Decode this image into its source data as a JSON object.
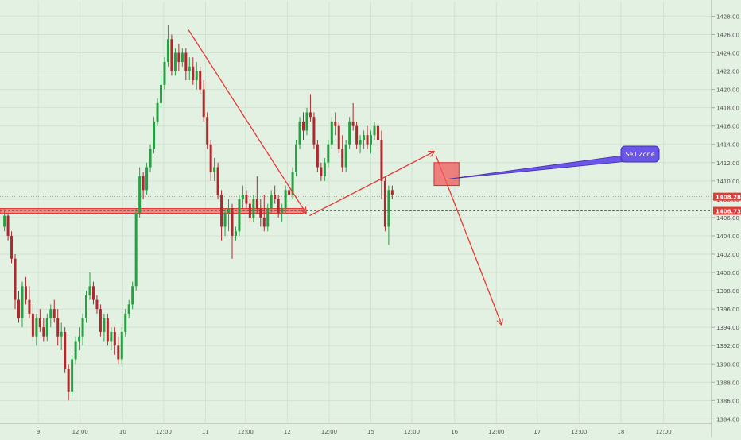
{
  "chart_data": {
    "type": "candlestick",
    "title": "",
    "xlabel": "",
    "ylabel": "",
    "ylim": [
      1383.6,
      1429.6
    ],
    "xlim": [
      0,
      80
    ],
    "grid": true,
    "y_ticks": [
      1384,
      1386,
      1388,
      1390,
      1392,
      1394,
      1396,
      1398,
      1400,
      1402,
      1404,
      1406,
      1408,
      1410,
      1412,
      1414,
      1416,
      1418,
      1420,
      1422,
      1424,
      1426,
      1428
    ],
    "x_ticks": [
      {
        "x": 4.3,
        "label": "9"
      },
      {
        "x": 9,
        "label": "12:00"
      },
      {
        "x": 13.8,
        "label": "10"
      },
      {
        "x": 18.4,
        "label": "12:00"
      },
      {
        "x": 23.1,
        "label": "11"
      },
      {
        "x": 27.6,
        "label": "12:00"
      },
      {
        "x": 32.3,
        "label": "12"
      },
      {
        "x": 37,
        "label": "12:00"
      },
      {
        "x": 41.7,
        "label": "15"
      },
      {
        "x": 46.3,
        "label": "12:00"
      },
      {
        "x": 51.1,
        "label": "16"
      },
      {
        "x": 55.8,
        "label": "12:00"
      },
      {
        "x": 60.4,
        "label": "17"
      },
      {
        "x": 65.1,
        "label": "12:00"
      },
      {
        "x": 69.8,
        "label": "18"
      },
      {
        "x": 74.6,
        "label": "12:00"
      }
    ],
    "price_labels": [
      {
        "value": 1408.28,
        "label": "1408.28"
      },
      {
        "value": 1406.73,
        "label": "1406.73"
      }
    ],
    "candles": [
      {
        "x": 0.5,
        "o": 1405.0,
        "h": 1407.0,
        "l": 1404.5,
        "c": 1406.2
      },
      {
        "x": 0.9,
        "o": 1406.2,
        "h": 1406.5,
        "l": 1403.5,
        "c": 1404.0
      },
      {
        "x": 1.3,
        "o": 1404.0,
        "h": 1404.5,
        "l": 1401.0,
        "c": 1401.5
      },
      {
        "x": 1.7,
        "o": 1401.5,
        "h": 1402.0,
        "l": 1396.0,
        "c": 1397.0
      },
      {
        "x": 2.1,
        "o": 1397.0,
        "h": 1398.0,
        "l": 1394.5,
        "c": 1395.0
      },
      {
        "x": 2.5,
        "o": 1395.0,
        "h": 1399.0,
        "l": 1394.0,
        "c": 1398.5
      },
      {
        "x": 2.9,
        "o": 1398.5,
        "h": 1399.5,
        "l": 1396.5,
        "c": 1397.0
      },
      {
        "x": 3.3,
        "o": 1397.0,
        "h": 1398.5,
        "l": 1395.0,
        "c": 1395.5
      },
      {
        "x": 3.7,
        "o": 1395.5,
        "h": 1396.5,
        "l": 1392.5,
        "c": 1393.0
      },
      {
        "x": 4.1,
        "o": 1393.0,
        "h": 1395.5,
        "l": 1392.0,
        "c": 1395.0
      },
      {
        "x": 4.5,
        "o": 1395.0,
        "h": 1396.0,
        "l": 1393.5,
        "c": 1394.0
      },
      {
        "x": 4.9,
        "o": 1394.0,
        "h": 1395.0,
        "l": 1392.5,
        "c": 1393.0
      },
      {
        "x": 5.3,
        "o": 1393.0,
        "h": 1395.5,
        "l": 1392.5,
        "c": 1395.0
      },
      {
        "x": 5.7,
        "o": 1395.0,
        "h": 1396.5,
        "l": 1394.0,
        "c": 1396.0
      },
      {
        "x": 6.1,
        "o": 1396.0,
        "h": 1397.0,
        "l": 1394.5,
        "c": 1395.0
      },
      {
        "x": 6.5,
        "o": 1395.0,
        "h": 1396.0,
        "l": 1392.0,
        "c": 1393.0
      },
      {
        "x": 6.9,
        "o": 1393.0,
        "h": 1394.5,
        "l": 1391.5,
        "c": 1393.5
      },
      {
        "x": 7.3,
        "o": 1393.5,
        "h": 1394.0,
        "l": 1389.0,
        "c": 1389.5
      },
      {
        "x": 7.7,
        "o": 1389.5,
        "h": 1390.0,
        "l": 1386.0,
        "c": 1387.0
      },
      {
        "x": 8.1,
        "o": 1387.0,
        "h": 1391.0,
        "l": 1386.5,
        "c": 1390.5
      },
      {
        "x": 8.5,
        "o": 1390.5,
        "h": 1393.0,
        "l": 1390.0,
        "c": 1392.5
      },
      {
        "x": 8.9,
        "o": 1392.5,
        "h": 1394.0,
        "l": 1391.5,
        "c": 1393.0
      },
      {
        "x": 9.3,
        "o": 1393.0,
        "h": 1395.5,
        "l": 1392.0,
        "c": 1395.0
      },
      {
        "x": 9.7,
        "o": 1395.0,
        "h": 1398.0,
        "l": 1394.5,
        "c": 1397.5
      },
      {
        "x": 10.1,
        "o": 1397.5,
        "h": 1400.0,
        "l": 1397.0,
        "c": 1398.5
      },
      {
        "x": 10.5,
        "o": 1398.5,
        "h": 1399.0,
        "l": 1396.5,
        "c": 1397.0
      },
      {
        "x": 10.9,
        "o": 1397.0,
        "h": 1397.5,
        "l": 1395.5,
        "c": 1396.0
      },
      {
        "x": 11.3,
        "o": 1396.0,
        "h": 1396.5,
        "l": 1393.0,
        "c": 1393.5
      },
      {
        "x": 11.7,
        "o": 1393.5,
        "h": 1395.5,
        "l": 1392.5,
        "c": 1395.0
      },
      {
        "x": 12.1,
        "o": 1395.0,
        "h": 1395.5,
        "l": 1392.0,
        "c": 1392.5
      },
      {
        "x": 12.5,
        "o": 1392.5,
        "h": 1394.0,
        "l": 1391.5,
        "c": 1393.5
      },
      {
        "x": 12.9,
        "o": 1393.5,
        "h": 1394.0,
        "l": 1391.0,
        "c": 1392.0
      },
      {
        "x": 13.3,
        "o": 1392.0,
        "h": 1393.0,
        "l": 1390.0,
        "c": 1390.5
      },
      {
        "x": 13.7,
        "o": 1390.5,
        "h": 1394.0,
        "l": 1390.0,
        "c": 1393.5
      },
      {
        "x": 14.1,
        "o": 1393.5,
        "h": 1396.0,
        "l": 1393.0,
        "c": 1395.5
      },
      {
        "x": 14.5,
        "o": 1395.5,
        "h": 1397.0,
        "l": 1395.0,
        "c": 1396.5
      },
      {
        "x": 14.9,
        "o": 1396.5,
        "h": 1399.0,
        "l": 1396.0,
        "c": 1398.5
      },
      {
        "x": 15.3,
        "o": 1398.5,
        "h": 1407.0,
        "l": 1398.0,
        "c": 1406.5
      },
      {
        "x": 15.7,
        "o": 1406.5,
        "h": 1411.5,
        "l": 1406.0,
        "c": 1410.5
      },
      {
        "x": 16.1,
        "o": 1410.5,
        "h": 1411.0,
        "l": 1408.0,
        "c": 1409.0
      },
      {
        "x": 16.5,
        "o": 1409.0,
        "h": 1412.0,
        "l": 1408.5,
        "c": 1411.5
      },
      {
        "x": 16.9,
        "o": 1411.5,
        "h": 1414.0,
        "l": 1411.0,
        "c": 1413.5
      },
      {
        "x": 17.3,
        "o": 1413.5,
        "h": 1417.0,
        "l": 1413.0,
        "c": 1416.5
      },
      {
        "x": 17.7,
        "o": 1416.5,
        "h": 1419.0,
        "l": 1416.0,
        "c": 1418.5
      },
      {
        "x": 18.1,
        "o": 1418.5,
        "h": 1421.5,
        "l": 1418.0,
        "c": 1420.5
      },
      {
        "x": 18.5,
        "o": 1420.5,
        "h": 1423.5,
        "l": 1420.0,
        "c": 1423.0
      },
      {
        "x": 18.9,
        "o": 1423.0,
        "h": 1427.0,
        "l": 1422.5,
        "c": 1425.5
      },
      {
        "x": 19.3,
        "o": 1425.5,
        "h": 1426.0,
        "l": 1421.5,
        "c": 1422.0
      },
      {
        "x": 19.7,
        "o": 1422.0,
        "h": 1424.5,
        "l": 1421.5,
        "c": 1424.0
      },
      {
        "x": 20.1,
        "o": 1424.0,
        "h": 1425.0,
        "l": 1422.0,
        "c": 1423.0
      },
      {
        "x": 20.5,
        "o": 1423.0,
        "h": 1424.5,
        "l": 1422.5,
        "c": 1424.0
      },
      {
        "x": 20.9,
        "o": 1424.0,
        "h": 1424.5,
        "l": 1421.0,
        "c": 1422.0
      },
      {
        "x": 21.3,
        "o": 1422.0,
        "h": 1423.5,
        "l": 1421.0,
        "c": 1422.5
      },
      {
        "x": 21.7,
        "o": 1422.5,
        "h": 1423.5,
        "l": 1420.5,
        "c": 1421.0
      },
      {
        "x": 22.1,
        "o": 1421.0,
        "h": 1423.0,
        "l": 1420.0,
        "c": 1422.0
      },
      {
        "x": 22.5,
        "o": 1422.0,
        "h": 1422.5,
        "l": 1419.5,
        "c": 1420.0
      },
      {
        "x": 22.9,
        "o": 1420.0,
        "h": 1421.0,
        "l": 1416.5,
        "c": 1417.0
      },
      {
        "x": 23.3,
        "o": 1417.0,
        "h": 1417.5,
        "l": 1413.5,
        "c": 1414.0
      },
      {
        "x": 23.7,
        "o": 1414.0,
        "h": 1414.5,
        "l": 1410.0,
        "c": 1411.0
      },
      {
        "x": 24.1,
        "o": 1411.0,
        "h": 1412.5,
        "l": 1410.0,
        "c": 1411.5
      },
      {
        "x": 24.5,
        "o": 1411.5,
        "h": 1412.0,
        "l": 1408.0,
        "c": 1408.5
      },
      {
        "x": 24.9,
        "o": 1408.5,
        "h": 1409.0,
        "l": 1403.5,
        "c": 1405.0
      },
      {
        "x": 25.3,
        "o": 1405.0,
        "h": 1407.0,
        "l": 1404.0,
        "c": 1406.5
      },
      {
        "x": 25.7,
        "o": 1406.5,
        "h": 1408.0,
        "l": 1404.5,
        "c": 1407.0
      },
      {
        "x": 26.1,
        "o": 1407.0,
        "h": 1407.5,
        "l": 1401.5,
        "c": 1404.0
      },
      {
        "x": 26.5,
        "o": 1404.0,
        "h": 1405.0,
        "l": 1403.5,
        "c": 1404.5
      },
      {
        "x": 26.9,
        "o": 1404.5,
        "h": 1408.5,
        "l": 1404.0,
        "c": 1408.0
      },
      {
        "x": 27.3,
        "o": 1408.0,
        "h": 1409.5,
        "l": 1407.0,
        "c": 1408.5
      },
      {
        "x": 27.7,
        "o": 1408.5,
        "h": 1409.0,
        "l": 1407.0,
        "c": 1407.5
      },
      {
        "x": 28.1,
        "o": 1407.5,
        "h": 1408.0,
        "l": 1405.5,
        "c": 1406.0
      },
      {
        "x": 28.5,
        "o": 1406.0,
        "h": 1408.5,
        "l": 1405.5,
        "c": 1408.0
      },
      {
        "x": 28.9,
        "o": 1408.0,
        "h": 1410.5,
        "l": 1406.5,
        "c": 1407.0
      },
      {
        "x": 29.3,
        "o": 1407.0,
        "h": 1408.0,
        "l": 1405.0,
        "c": 1406.0
      },
      {
        "x": 29.7,
        "o": 1406.0,
        "h": 1408.5,
        "l": 1404.5,
        "c": 1405.0
      },
      {
        "x": 30.1,
        "o": 1405.0,
        "h": 1407.5,
        "l": 1404.5,
        "c": 1407.0
      },
      {
        "x": 30.5,
        "o": 1407.0,
        "h": 1409.0,
        "l": 1406.5,
        "c": 1408.5
      },
      {
        "x": 30.9,
        "o": 1408.5,
        "h": 1409.5,
        "l": 1407.5,
        "c": 1408.0
      },
      {
        "x": 31.3,
        "o": 1408.0,
        "h": 1408.5,
        "l": 1406.0,
        "c": 1406.5
      },
      {
        "x": 31.7,
        "o": 1406.5,
        "h": 1407.5,
        "l": 1405.5,
        "c": 1407.0
      },
      {
        "x": 32.1,
        "o": 1407.0,
        "h": 1409.5,
        "l": 1406.5,
        "c": 1409.0
      },
      {
        "x": 32.5,
        "o": 1409.0,
        "h": 1410.0,
        "l": 1408.0,
        "c": 1408.5
      },
      {
        "x": 32.9,
        "o": 1408.5,
        "h": 1411.5,
        "l": 1408.0,
        "c": 1411.0
      },
      {
        "x": 33.3,
        "o": 1411.0,
        "h": 1414.5,
        "l": 1410.5,
        "c": 1414.0
      },
      {
        "x": 33.7,
        "o": 1414.0,
        "h": 1417.0,
        "l": 1413.5,
        "c": 1416.5
      },
      {
        "x": 34.1,
        "o": 1416.5,
        "h": 1417.5,
        "l": 1414.5,
        "c": 1415.5
      },
      {
        "x": 34.5,
        "o": 1415.5,
        "h": 1418.0,
        "l": 1415.0,
        "c": 1417.5
      },
      {
        "x": 34.9,
        "o": 1417.5,
        "h": 1419.5,
        "l": 1416.5,
        "c": 1417.0
      },
      {
        "x": 35.3,
        "o": 1417.0,
        "h": 1417.5,
        "l": 1413.5,
        "c": 1414.0
      },
      {
        "x": 35.7,
        "o": 1414.0,
        "h": 1414.5,
        "l": 1411.0,
        "c": 1411.5
      },
      {
        "x": 36.1,
        "o": 1411.5,
        "h": 1412.0,
        "l": 1410.0,
        "c": 1410.5
      },
      {
        "x": 36.5,
        "o": 1410.5,
        "h": 1412.5,
        "l": 1410.0,
        "c": 1412.0
      },
      {
        "x": 36.9,
        "o": 1412.0,
        "h": 1414.5,
        "l": 1411.5,
        "c": 1414.0
      },
      {
        "x": 37.3,
        "o": 1414.0,
        "h": 1417.0,
        "l": 1413.5,
        "c": 1416.5
      },
      {
        "x": 37.7,
        "o": 1416.5,
        "h": 1417.5,
        "l": 1415.0,
        "c": 1416.0
      },
      {
        "x": 38.1,
        "o": 1416.0,
        "h": 1416.5,
        "l": 1413.0,
        "c": 1413.5
      },
      {
        "x": 38.5,
        "o": 1413.5,
        "h": 1415.0,
        "l": 1411.0,
        "c": 1411.5
      },
      {
        "x": 38.9,
        "o": 1411.5,
        "h": 1414.5,
        "l": 1411.0,
        "c": 1414.0
      },
      {
        "x": 39.3,
        "o": 1414.0,
        "h": 1417.0,
        "l": 1413.5,
        "c": 1416.5
      },
      {
        "x": 39.7,
        "o": 1416.5,
        "h": 1418.5,
        "l": 1415.5,
        "c": 1416.0
      },
      {
        "x": 40.1,
        "o": 1416.0,
        "h": 1416.5,
        "l": 1413.5,
        "c": 1414.0
      },
      {
        "x": 40.5,
        "o": 1414.0,
        "h": 1415.0,
        "l": 1413.0,
        "c": 1414.5
      },
      {
        "x": 40.9,
        "o": 1414.5,
        "h": 1415.5,
        "l": 1413.5,
        "c": 1415.0
      },
      {
        "x": 41.3,
        "o": 1415.0,
        "h": 1416.0,
        "l": 1413.5,
        "c": 1414.0
      },
      {
        "x": 41.7,
        "o": 1414.0,
        "h": 1415.5,
        "l": 1413.0,
        "c": 1415.0
      },
      {
        "x": 42.1,
        "o": 1415.0,
        "h": 1416.5,
        "l": 1414.5,
        "c": 1416.0
      },
      {
        "x": 42.5,
        "o": 1416.0,
        "h": 1416.5,
        "l": 1413.5,
        "c": 1414.5
      },
      {
        "x": 42.9,
        "o": 1414.5,
        "h": 1415.5,
        "l": 1408.0,
        "c": 1410.0
      },
      {
        "x": 43.3,
        "o": 1410.0,
        "h": 1410.5,
        "l": 1404.5,
        "c": 1405.0
      },
      {
        "x": 43.7,
        "o": 1405.0,
        "h": 1409.5,
        "l": 1403.0,
        "c": 1409.0
      },
      {
        "x": 44.1,
        "o": 1409.0,
        "h": 1409.5,
        "l": 1408.0,
        "c": 1408.5
      }
    ],
    "levels": [
      {
        "value": 1408.28,
        "style": "dotted"
      },
      {
        "value": 1406.73,
        "style": "dashed"
      },
      {
        "value": 1406.73,
        "style": "band"
      }
    ],
    "annotations": {
      "arrows": [
        {
          "from": [
            21.2,
            1426.5
          ],
          "to": [
            34.4,
            1406.5
          ]
        },
        {
          "from": [
            34.8,
            1406.2
          ],
          "to": [
            48.8,
            1413.2
          ]
        },
        {
          "from": [
            49.0,
            1412.8
          ],
          "to": [
            56.4,
            1394.3
          ]
        }
      ],
      "sell_zone_box": {
        "x0": 48.8,
        "x1": 51.6,
        "y0": 1409.5,
        "y1": 1412.0
      },
      "callout": {
        "text": "Sell Zone",
        "anchor": [
          50.3,
          1410.2
        ]
      }
    }
  }
}
